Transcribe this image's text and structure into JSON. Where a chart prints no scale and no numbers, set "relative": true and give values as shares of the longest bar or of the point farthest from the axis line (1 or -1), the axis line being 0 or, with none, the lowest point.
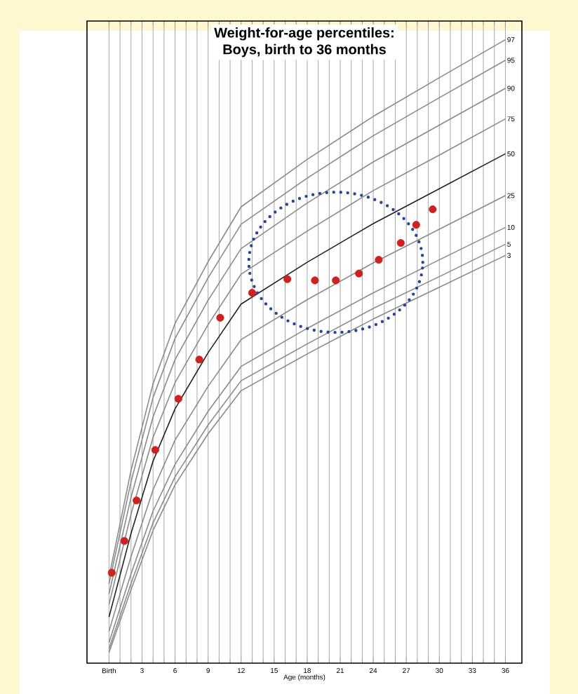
{
  "chart_data": {
    "type": "line",
    "title": "Weight-for-age percentiles:",
    "subtitle": "Boys, birth to 36 months",
    "xlabel": "Age (months)",
    "relative": true,
    "grid": "x",
    "tick_labels": "x",
    "xlim": [
      -2,
      37.5
    ],
    "xticks": [
      {
        "value": 0,
        "label": "Birth"
      },
      3,
      6,
      9,
      12,
      15,
      18,
      21,
      24,
      27,
      30,
      33,
      36
    ],
    "x": [
      0,
      2,
      4,
      6,
      9,
      12,
      18,
      24,
      30,
      36
    ],
    "series": [
      {
        "name": "97",
        "color": "#8a8a8a",
        "values": [
          0.138,
          0.309,
          0.448,
          0.545,
          0.644,
          0.732,
          0.808,
          0.877,
          0.939,
          1.0
        ]
      },
      {
        "name": "95",
        "color": "#8a8a8a",
        "values": [
          0.127,
          0.291,
          0.426,
          0.521,
          0.618,
          0.704,
          0.778,
          0.846,
          0.907,
          0.967
        ]
      },
      {
        "name": "90",
        "color": "#8a8a8a",
        "values": [
          0.111,
          0.266,
          0.395,
          0.487,
          0.582,
          0.665,
          0.738,
          0.804,
          0.863,
          0.922
        ]
      },
      {
        "name": "75",
        "color": "#8a8a8a",
        "values": [
          0.094,
          0.239,
          0.362,
          0.45,
          0.543,
          0.624,
          0.693,
          0.758,
          0.815,
          0.873
        ]
      },
      {
        "name": "50",
        "color": "#222222",
        "values": [
          0.074,
          0.208,
          0.324,
          0.408,
          0.498,
          0.576,
          0.643,
          0.705,
          0.761,
          0.817
        ]
      },
      {
        "name": "25",
        "color": "#8a8a8a",
        "values": [
          0.051,
          0.171,
          0.278,
          0.358,
          0.444,
          0.519,
          0.583,
          0.642,
          0.696,
          0.75
        ]
      },
      {
        "name": "10",
        "color": "#8a8a8a",
        "values": [
          0.033,
          0.143,
          0.244,
          0.319,
          0.404,
          0.476,
          0.537,
          0.594,
          0.647,
          0.699
        ]
      },
      {
        "name": "5",
        "color": "#8a8a8a",
        "values": [
          0.023,
          0.128,
          0.225,
          0.299,
          0.382,
          0.453,
          0.512,
          0.569,
          0.62,
          0.672
        ]
      },
      {
        "name": "3",
        "color": "#8a8a8a",
        "values": [
          0.017,
          0.118,
          0.213,
          0.286,
          0.368,
          0.437,
          0.496,
          0.552,
          0.603,
          0.654
        ]
      },
      {
        "type": "scatter",
        "marker": "circle",
        "color": "#cc2222",
        "x": [
          0.25,
          1.4,
          2.5,
          4.2,
          6.3,
          8.2,
          10.1,
          13.0,
          16.2,
          18.7,
          20.6,
          22.7,
          24.5,
          26.5,
          27.9,
          29.4
        ],
        "values": [
          0.145,
          0.196,
          0.261,
          0.342,
          0.424,
          0.487,
          0.554,
          0.594,
          0.616,
          0.614,
          0.614,
          0.625,
          0.647,
          0.674,
          0.703,
          0.728
        ]
      }
    ]
  }
}
